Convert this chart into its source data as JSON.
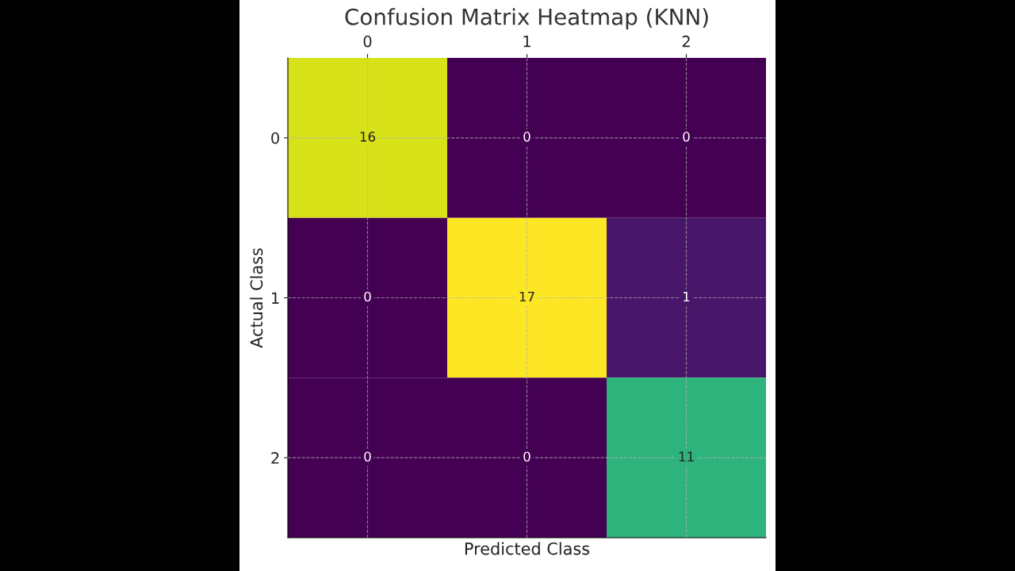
{
  "chart_data": {
    "type": "heatmap",
    "title": "Confusion Matrix Heatmap (KNN)",
    "xlabel": "Predicted Class",
    "ylabel": "Actual Class",
    "categories": [
      "0",
      "1",
      "2"
    ],
    "y_categories": [
      "0",
      "1",
      "2"
    ],
    "cells": [
      [
        16,
        0,
        0
      ],
      [
        0,
        17,
        1
      ],
      [
        0,
        0,
        11
      ]
    ],
    "data_labels": true,
    "grid": true
  }
}
